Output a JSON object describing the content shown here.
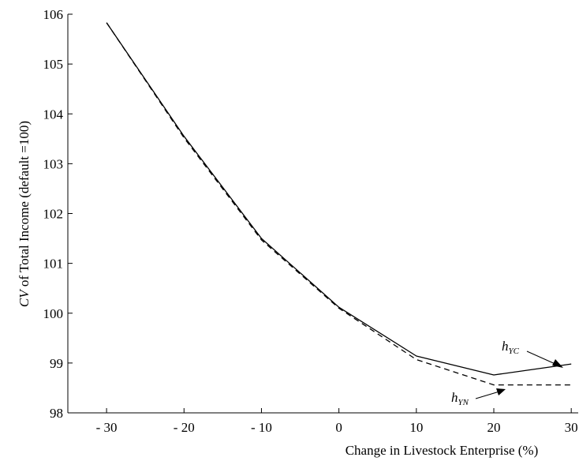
{
  "chart_data": {
    "type": "line",
    "x": [
      -30,
      -20,
      -10,
      0,
      10,
      20,
      30
    ],
    "x_tick_labels": [
      "- 30",
      "- 20",
      "- 10",
      "0",
      "10",
      "20",
      "30"
    ],
    "y_tick_labels": [
      "98",
      "99",
      "100",
      "101",
      "102",
      "103",
      "104",
      "105",
      "106"
    ],
    "xlim": [
      -35,
      31
    ],
    "ylim": [
      98,
      106
    ],
    "xlabel": "Change in Livestock Enterprise (%)",
    "ylabel_italic": "CV",
    "ylabel_rest": " of Total Income (default =100)",
    "grid": false,
    "series": [
      {
        "name": "hYC",
        "label_main": "h",
        "label_sub": "YC",
        "style": "solid",
        "values": [
          105.83,
          103.55,
          101.5,
          100.12,
          99.14,
          98.76,
          98.98
        ]
      },
      {
        "name": "hYN",
        "label_main": "h",
        "label_sub": "YN",
        "style": "dashed",
        "values": [
          105.83,
          103.52,
          101.47,
          100.1,
          99.07,
          98.56,
          98.56
        ]
      }
    ],
    "colors": {
      "line": "#000000",
      "background": "#ffffff"
    }
  }
}
